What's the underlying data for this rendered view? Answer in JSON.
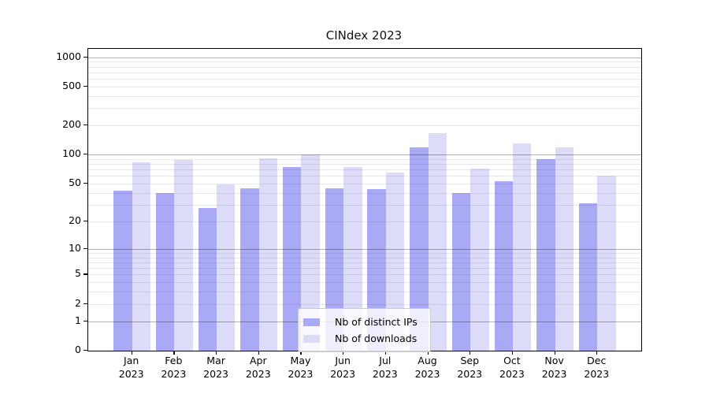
{
  "chart_data": {
    "type": "bar",
    "title": "CINdex 2023",
    "categories": [
      "Jan",
      "Feb",
      "Mar",
      "Apr",
      "May",
      "Jun",
      "Jul",
      "Aug",
      "Sep",
      "Oct",
      "Nov",
      "Dec"
    ],
    "x_tick_year": "2023",
    "series": [
      {
        "name": "Nb of distinct IPs",
        "color": "#a9a9f6",
        "values": [
          42,
          40,
          28,
          45,
          75,
          45,
          44,
          119,
          40,
          53,
          90,
          31
        ]
      },
      {
        "name": "Nb of downloads",
        "color": "#dcdcf9",
        "values": [
          83,
          88,
          49,
          92,
          100,
          74,
          65,
          168,
          72,
          130,
          118,
          60
        ]
      }
    ],
    "ylabel": "",
    "xlabel": "",
    "yscale": "log1p",
    "ylim": [
      0,
      1240
    ],
    "yticks": [
      0,
      1,
      2,
      5,
      10,
      20,
      50,
      100,
      200,
      500,
      1000
    ],
    "major_gridlines": [
      1,
      10,
      100,
      1000
    ],
    "minor_gridlines": [
      2,
      3,
      4,
      5,
      6,
      7,
      8,
      9,
      20,
      30,
      40,
      50,
      60,
      70,
      80,
      90,
      200,
      300,
      400,
      500,
      600,
      700,
      800,
      900
    ],
    "grid": true,
    "legend": {
      "position": "bottom-center",
      "entries": [
        "Nb of distinct IPs",
        "Nb of downloads"
      ]
    }
  },
  "colors": {
    "bar_ips": "#a9a9f6",
    "bar_downloads": "#dcdcf9",
    "axis": "#000000",
    "major_grid": "#b2b2b2",
    "minor_grid": "#e9e9e9",
    "legend_border": "#cccccc",
    "background": "#ffffff"
  }
}
